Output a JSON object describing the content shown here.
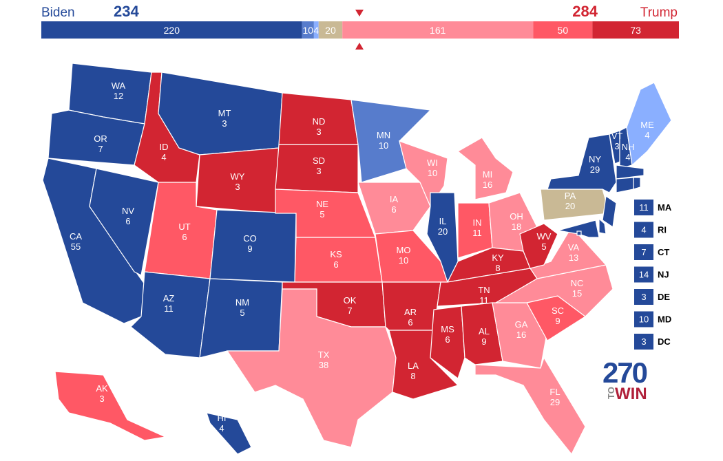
{
  "header": {
    "left_name": "Biden",
    "left_total": 234,
    "right_name": "Trump",
    "right_total": 284
  },
  "bar": [
    {
      "value": 220,
      "color": "#244999"
    },
    {
      "value": 10,
      "color": "#577ccc"
    },
    {
      "value": 4,
      "color": "#8aafff"
    },
    {
      "value": 20,
      "color": "#c9b995"
    },
    {
      "value": 161,
      "color": "#ff8b98"
    },
    {
      "value": 50,
      "color": "#ff5865"
    },
    {
      "value": 73,
      "color": "#d22532"
    }
  ],
  "states": [
    {
      "name": "WA",
      "ev": 12,
      "color": "#244999"
    },
    {
      "name": "OR",
      "ev": 7,
      "color": "#244999"
    },
    {
      "name": "CA",
      "ev": 55,
      "color": "#244999"
    },
    {
      "name": "NV",
      "ev": 6,
      "color": "#244999"
    },
    {
      "name": "ID",
      "ev": 4,
      "color": "#d22532"
    },
    {
      "name": "MT",
      "ev": 3,
      "color": "#244999"
    },
    {
      "name": "WY",
      "ev": 3,
      "color": "#d22532"
    },
    {
      "name": "UT",
      "ev": 6,
      "color": "#ff5865"
    },
    {
      "name": "CO",
      "ev": 9,
      "color": "#244999"
    },
    {
      "name": "AZ",
      "ev": 11,
      "color": "#244999"
    },
    {
      "name": "NM",
      "ev": 5,
      "color": "#244999"
    },
    {
      "name": "ND",
      "ev": 3,
      "color": "#d22532"
    },
    {
      "name": "SD",
      "ev": 3,
      "color": "#d22532"
    },
    {
      "name": "NE",
      "ev": 5,
      "color": "#ff5865"
    },
    {
      "name": "KS",
      "ev": 6,
      "color": "#ff5865"
    },
    {
      "name": "OK",
      "ev": 7,
      "color": "#d22532"
    },
    {
      "name": "TX",
      "ev": 38,
      "color": "#ff8b98"
    },
    {
      "name": "MN",
      "ev": 10,
      "color": "#577ccc"
    },
    {
      "name": "IA",
      "ev": 6,
      "color": "#ff8b98"
    },
    {
      "name": "MO",
      "ev": 10,
      "color": "#ff5865"
    },
    {
      "name": "AR",
      "ev": 6,
      "color": "#d22532"
    },
    {
      "name": "LA",
      "ev": 8,
      "color": "#d22532"
    },
    {
      "name": "WI",
      "ev": 10,
      "color": "#ff8b98"
    },
    {
      "name": "IL",
      "ev": 20,
      "color": "#244999"
    },
    {
      "name": "MI",
      "ev": 16,
      "color": "#ff8b98"
    },
    {
      "name": "IN",
      "ev": 11,
      "color": "#ff5865"
    },
    {
      "name": "OH",
      "ev": 18,
      "color": "#ff8b98"
    },
    {
      "name": "KY",
      "ev": 8,
      "color": "#d22532"
    },
    {
      "name": "TN",
      "ev": 11,
      "color": "#d22532"
    },
    {
      "name": "MS",
      "ev": 6,
      "color": "#d22532"
    },
    {
      "name": "AL",
      "ev": 9,
      "color": "#d22532"
    },
    {
      "name": "GA",
      "ev": 16,
      "color": "#ff8b98"
    },
    {
      "name": "FL",
      "ev": 29,
      "color": "#ff8b98"
    },
    {
      "name": "SC",
      "ev": 9,
      "color": "#ff5865"
    },
    {
      "name": "NC",
      "ev": 15,
      "color": "#ff8b98"
    },
    {
      "name": "VA",
      "ev": 13,
      "color": "#ff8b98"
    },
    {
      "name": "WV",
      "ev": 5,
      "color": "#d22532"
    },
    {
      "name": "PA",
      "ev": 20,
      "color": "#c9b995"
    },
    {
      "name": "NY",
      "ev": 29,
      "color": "#244999"
    },
    {
      "name": "VT",
      "ev": 3,
      "color": "#244999"
    },
    {
      "name": "NH",
      "ev": 4,
      "color": "#244999"
    },
    {
      "name": "ME",
      "ev": 4,
      "color": "#8aafff"
    },
    {
      "name": "MA",
      "ev": 11,
      "color": "#244999"
    },
    {
      "name": "RI",
      "ev": 4,
      "color": "#244999"
    },
    {
      "name": "CT",
      "ev": 7,
      "color": "#244999"
    },
    {
      "name": "NJ",
      "ev": 14,
      "color": "#244999"
    },
    {
      "name": "DE",
      "ev": 3,
      "color": "#244999"
    },
    {
      "name": "MD",
      "ev": 10,
      "color": "#244999"
    },
    {
      "name": "DC",
      "ev": 3,
      "color": "#244999"
    },
    {
      "name": "AK",
      "ev": 3,
      "color": "#ff5865"
    },
    {
      "name": "HI",
      "ev": 4,
      "color": "#244999"
    }
  ],
  "logo": {
    "number": "270",
    "to": "TO",
    "win": "WIN"
  }
}
